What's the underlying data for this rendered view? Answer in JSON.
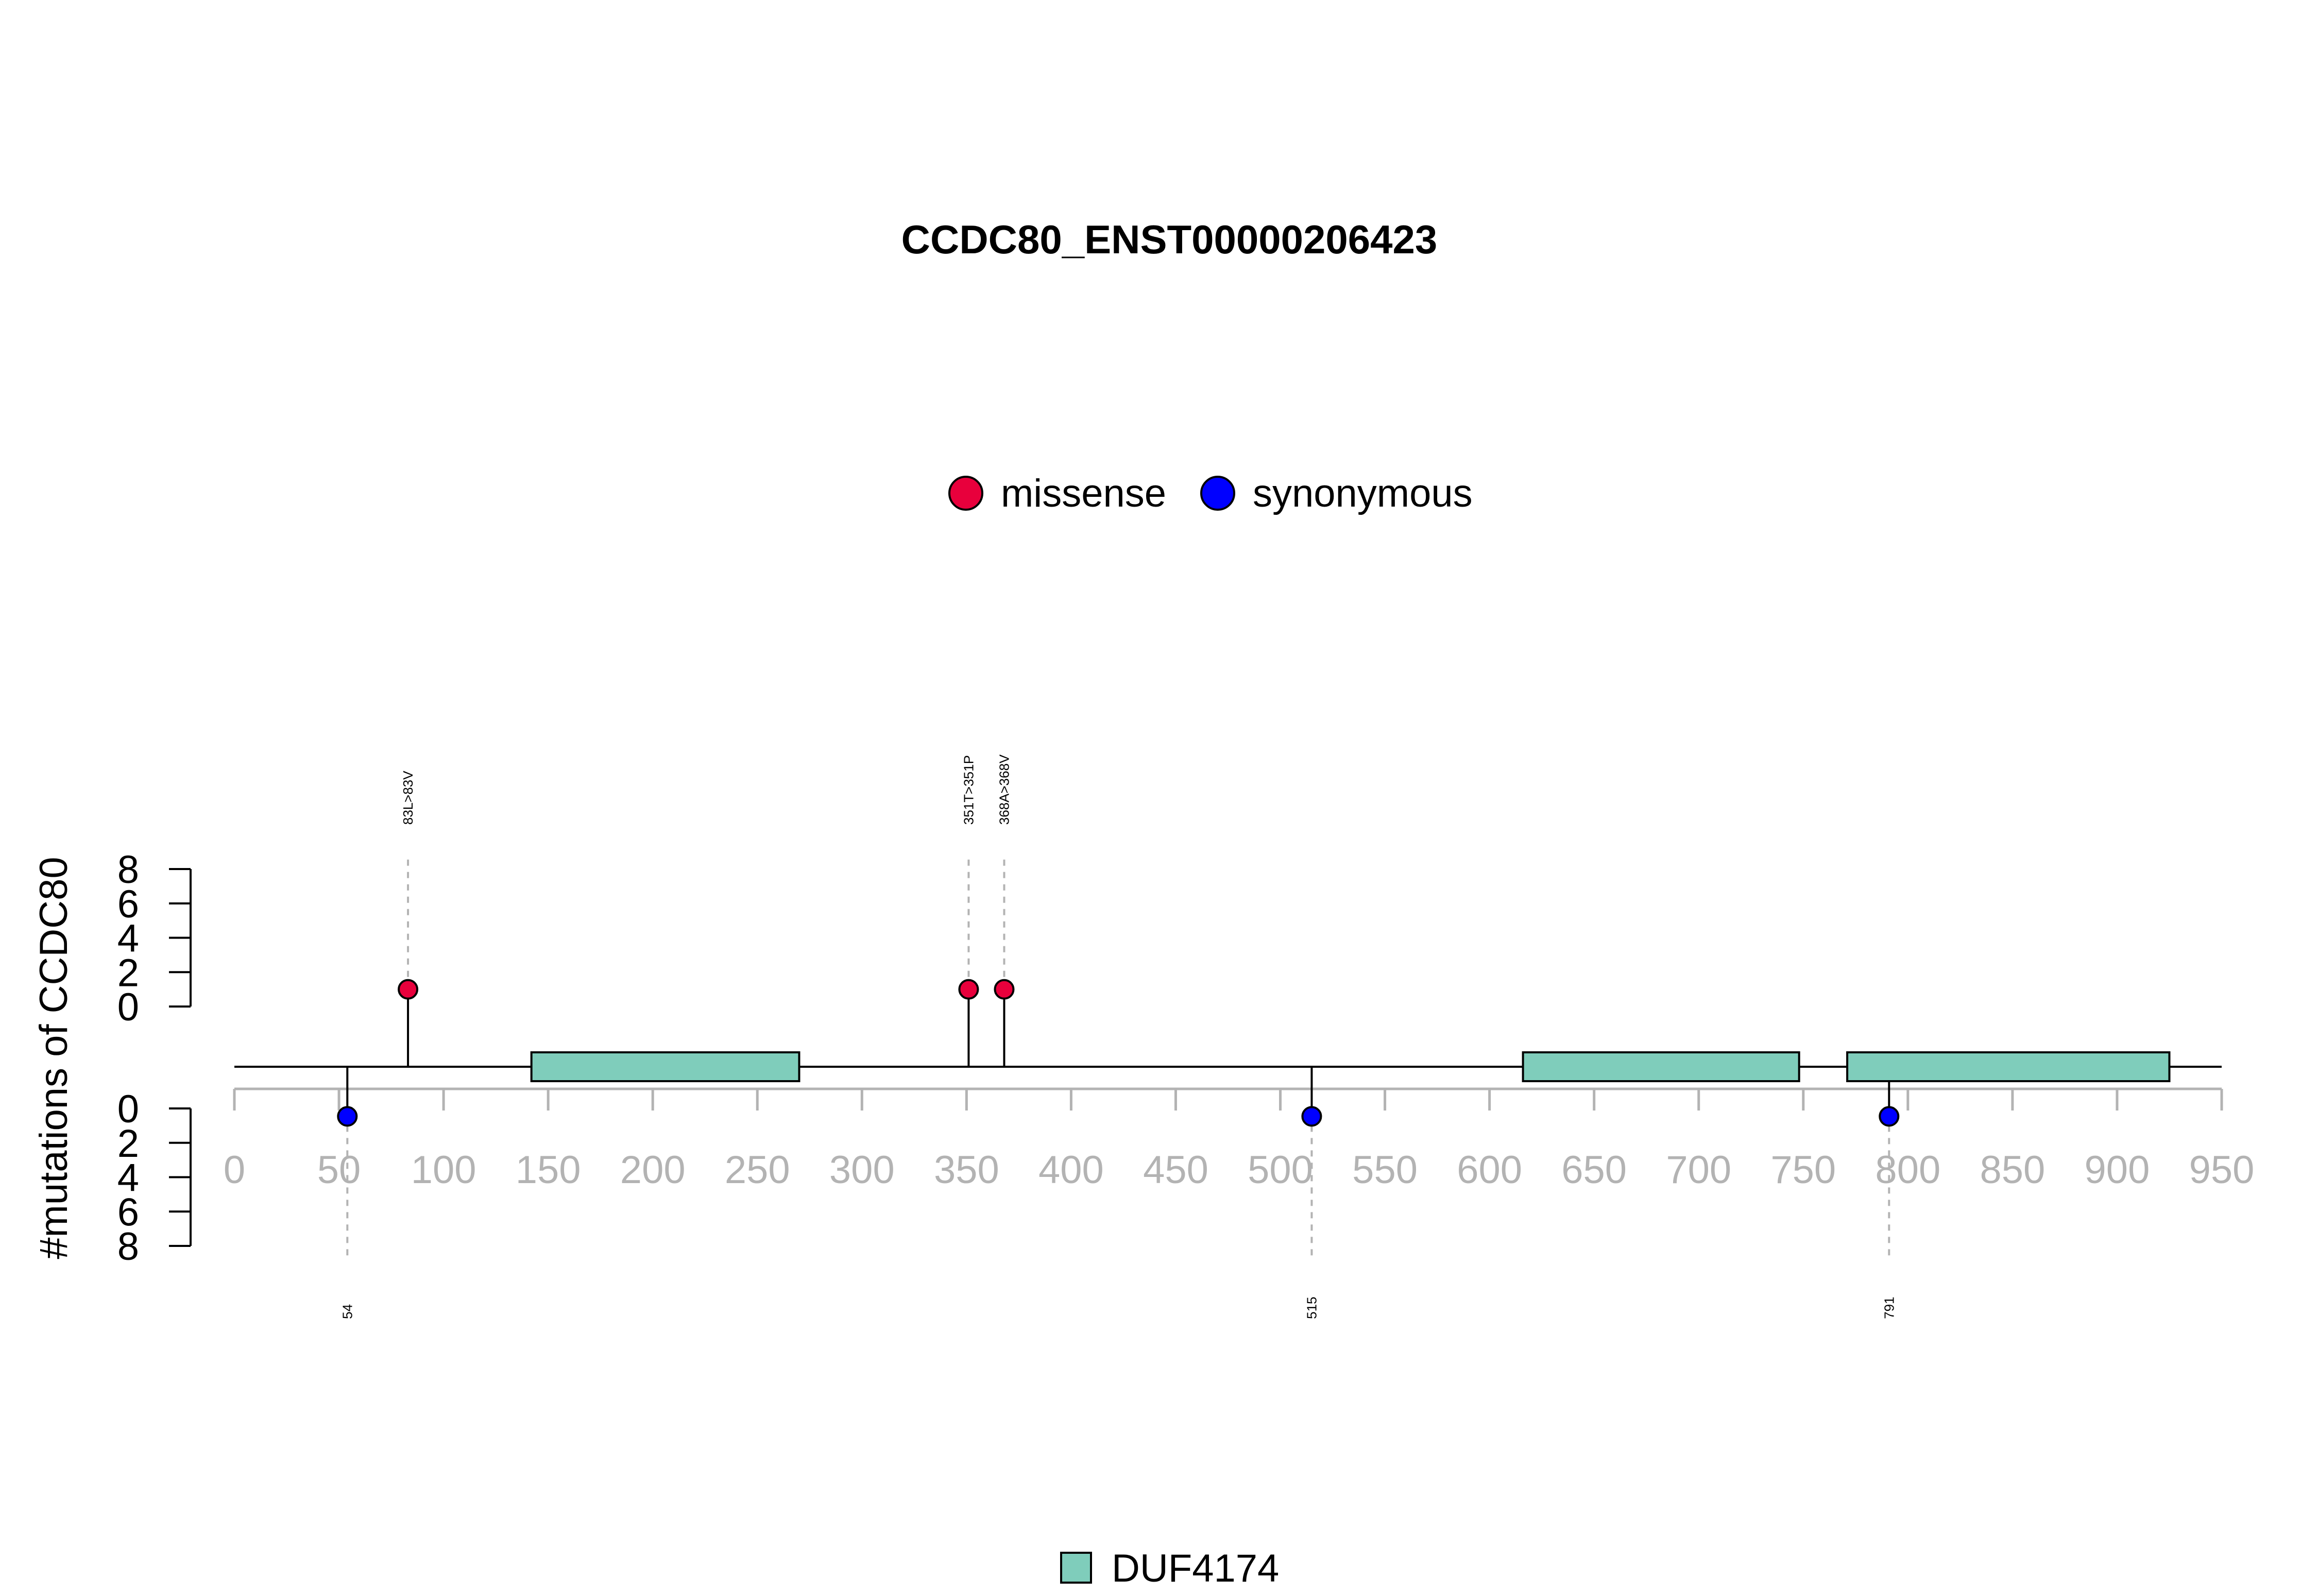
{
  "chart_data": {
    "type": "lollipop",
    "title": "CCDC80_ENST00000206423",
    "ylabel": "#mutations of CCDC80",
    "xlim": [
      0,
      950
    ],
    "x_ticks": [
      0,
      50,
      100,
      150,
      200,
      250,
      300,
      350,
      400,
      450,
      500,
      550,
      600,
      650,
      700,
      750,
      800,
      850,
      900,
      950
    ],
    "y_ticks_upper": [
      0,
      2,
      4,
      6,
      8
    ],
    "y_ticks_lower": [
      0,
      2,
      4,
      6,
      8
    ],
    "ylim": [
      0,
      8
    ],
    "legend": {
      "position": "top-center",
      "entries": [
        {
          "name": "missense",
          "color": "#e8003c"
        },
        {
          "name": "synonymous",
          "color": "#0000ff"
        }
      ]
    },
    "domain_legend": {
      "position": "bottom-center",
      "entries": [
        {
          "name": "DUF4174",
          "color": "#7fcdbb"
        }
      ]
    },
    "mutations_upper": [
      {
        "position": 83,
        "count": 1,
        "type": "missense",
        "label": "83L>83V"
      },
      {
        "position": 351,
        "count": 1,
        "type": "missense",
        "label": "351T>351P"
      },
      {
        "position": 368,
        "count": 1,
        "type": "missense",
        "label": "368A>368V"
      }
    ],
    "mutations_lower": [
      {
        "position": 54,
        "count": 1,
        "type": "synonymous",
        "label": "54"
      },
      {
        "position": 515,
        "count": 1,
        "type": "synonymous",
        "label": "515"
      },
      {
        "position": 791,
        "count": 1,
        "type": "synonymous",
        "label": "791"
      }
    ],
    "domains": [
      {
        "name": "DUF4174",
        "start": 142,
        "end": 270
      },
      {
        "name": "DUF4174",
        "start": 616,
        "end": 748
      },
      {
        "name": "DUF4174",
        "start": 771,
        "end": 925
      }
    ],
    "protein_length": 950
  }
}
